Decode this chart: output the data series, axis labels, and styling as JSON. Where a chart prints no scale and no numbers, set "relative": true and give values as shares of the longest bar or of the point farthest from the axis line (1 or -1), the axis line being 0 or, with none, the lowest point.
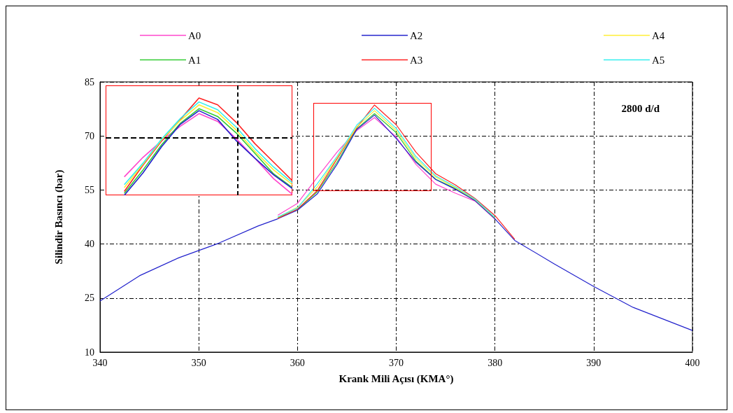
{
  "chart_data": [
    {
      "type": "line",
      "xlabel": "Krank Mili Açısı (KMA°)",
      "ylabel": "Silindir Basıncı (bar)",
      "annotations": [
        "2800 d/d"
      ],
      "x": [
        340,
        344,
        348,
        352,
        356,
        358,
        360,
        362,
        364,
        366,
        367.8,
        370,
        372,
        374,
        376,
        378,
        380,
        382,
        386,
        390,
        394,
        400
      ],
      "series": [
        {
          "name": "A0",
          "color": "#ff44cc",
          "values": [
            null,
            null,
            null,
            null,
            null,
            48.0,
            51.3,
            58.5,
            65.5,
            71.5,
            75.1,
            69.7,
            62.1,
            56.6,
            54.1,
            51.9,
            46.9,
            null,
            null,
            null,
            null,
            null
          ]
        },
        {
          "name": "A1",
          "color": "#33cc33",
          "values": [
            null,
            null,
            null,
            null,
            null,
            47.3,
            49.6,
            54.5,
            62.7,
            72,
            76.2,
            70.9,
            63,
            58,
            55.4,
            52.1,
            47.1,
            null,
            null,
            null,
            null,
            null
          ]
        },
        {
          "name": "A2",
          "color": "#2222cc",
          "values": [
            24.2,
            31.2,
            36.2,
            40.2,
            45,
            47.0,
            49.4,
            53.9,
            62.1,
            71.8,
            75.8,
            69.3,
            62.7,
            57.9,
            55.2,
            52.0,
            47.0,
            41,
            34.5,
            28.2,
            22.4,
            16
          ]
        },
        {
          "name": "A3",
          "color": "#ff2222",
          "values": [
            null,
            null,
            null,
            null,
            null,
            47.1,
            49.7,
            54.8,
            63.6,
            72.3,
            78.6,
            73.1,
            65.5,
            59.5,
            56.4,
            52.6,
            47.9,
            41.3,
            null,
            null,
            null,
            null
          ]
        },
        {
          "name": "A4",
          "color": "#ffee33",
          "values": [
            null,
            null,
            null,
            null,
            null,
            47.4,
            50.2,
            55.8,
            64,
            72.5,
            77,
            71.5,
            63.7,
            58.6,
            55.6,
            52.3,
            47.3,
            null,
            null,
            null,
            null,
            null
          ]
        },
        {
          "name": "A5",
          "color": "#33eeee",
          "values": [
            null,
            null,
            null,
            null,
            null,
            47.5,
            50,
            56.7,
            64.3,
            73,
            77.7,
            72.1,
            64.3,
            58.9,
            55.9,
            52.4,
            47.4,
            null,
            null,
            null,
            null,
            null
          ]
        }
      ],
      "xlim": [
        340,
        400
      ],
      "xticks": [
        340,
        350,
        360,
        370,
        380,
        390,
        400
      ],
      "ylim": [
        10,
        85
      ],
      "yticks": [
        10,
        25,
        40,
        55,
        70,
        85
      ],
      "grid": true,
      "legend": "top",
      "marker": "none",
      "line_style": "solid"
    },
    {
      "type": "line",
      "relative": true,
      "categories": [
        null,
        null,
        null,
        null,
        null,
        null,
        null,
        null,
        null,
        null,
        null
      ],
      "series": [
        {
          "color": "#ff44cc",
          "values": [
            null,
            0.19,
            0.39,
            0.56,
            0.71,
            0.84,
            0.76,
            0.58,
            0.38,
            0.17,
            0.01
          ]
        },
        {
          "color": "#33cc33",
          "values": [
            null,
            0.02,
            0.26,
            0.52,
            0.74,
            0.89,
            0.81,
            0.64,
            0.43,
            0.22,
            0.08
          ]
        },
        {
          "color": "#2222cc",
          "values": [
            null,
            0,
            0.23,
            0.5,
            0.73,
            0.87,
            0.78,
            0.56,
            0.38,
            0.21,
            0.07
          ]
        },
        {
          "color": "#ff2222",
          "values": [
            null,
            0.04,
            0.31,
            0.56,
            0.78,
            1,
            0.93,
            0.75,
            0.53,
            0.34,
            0.15
          ]
        },
        {
          "color": "#ffee33",
          "values": [
            null,
            0.08,
            0.32,
            0.57,
            0.77,
            0.93,
            0.85,
            0.67,
            0.45,
            0.26,
            0.11
          ]
        },
        {
          "color": "#33eeee",
          "values": [
            null,
            0.11,
            0.33,
            0.58,
            0.79,
            0.96,
            0.88,
            0.7,
            0.48,
            0.29,
            0.13
          ]
        }
      ],
      "ref_lines": [
        {
          "axis": "y",
          "value": 0.59,
          "color": "#000000",
          "line_style": "dashed"
        }
      ],
      "marker": "none",
      "line_style": "solid"
    }
  ]
}
